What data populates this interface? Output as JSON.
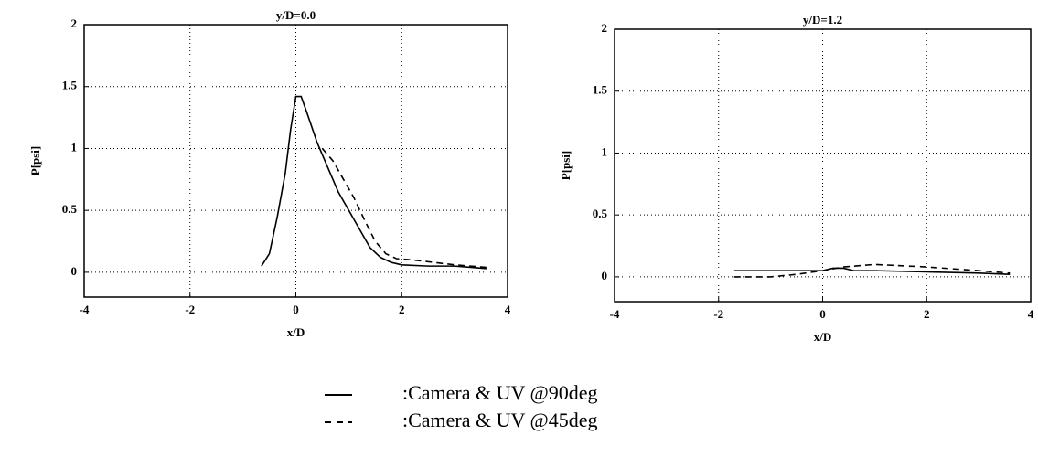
{
  "chart_data": [
    {
      "type": "line",
      "title": "y/D=0.0",
      "xlabel": "x/D",
      "ylabel": "P[psi]",
      "xlim": [
        -4,
        4
      ],
      "xticks": [
        -4,
        -2,
        0,
        2,
        4
      ],
      "ylim": [
        -0.2,
        2
      ],
      "yticks": [
        0,
        0.5,
        1,
        1.5,
        2
      ],
      "grid": true,
      "series": [
        {
          "name": ":Camera & UV @90deg",
          "color": "#000000",
          "dash": "solid",
          "x": [
            -0.65,
            -0.5,
            -0.35,
            -0.2,
            -0.1,
            0,
            0.1,
            0.2,
            0.4,
            0.6,
            0.8,
            1.0,
            1.2,
            1.4,
            1.6,
            1.8,
            2,
            2.5,
            3,
            3.6
          ],
          "values": [
            0.05,
            0.15,
            0.45,
            0.8,
            1.15,
            1.42,
            1.42,
            1.3,
            1.05,
            0.85,
            0.65,
            0.5,
            0.35,
            0.2,
            0.12,
            0.08,
            0.06,
            0.05,
            0.05,
            0.03
          ]
        },
        {
          "name": ":Camera & UV @45deg",
          "color": "#000000",
          "dash": "dashed",
          "x": [
            0.5,
            0.7,
            0.9,
            1.1,
            1.3,
            1.5,
            1.7,
            1.9,
            2.2,
            2.6,
            3,
            3.6
          ],
          "values": [
            1.0,
            0.9,
            0.75,
            0.6,
            0.42,
            0.25,
            0.15,
            0.11,
            0.1,
            0.08,
            0.06,
            0.04
          ]
        }
      ]
    },
    {
      "type": "line",
      "title": "y/D=1.2",
      "xlabel": "x/D",
      "ylabel": "P[psi]",
      "xlim": [
        -4,
        4
      ],
      "xticks": [
        -4,
        -2,
        0,
        2,
        4
      ],
      "ylim": [
        -0.2,
        2
      ],
      "yticks": [
        0,
        0.5,
        1,
        1.5,
        2
      ],
      "grid": true,
      "series": [
        {
          "color": "#000000",
          "dash": "solid",
          "x": [
            -1.7,
            -1,
            -0.5,
            0,
            0.2,
            0.4,
            0.6,
            1,
            2,
            3,
            3.6
          ],
          "values": [
            0.05,
            0.05,
            0.05,
            0.05,
            0.07,
            0.07,
            0.05,
            0.05,
            0.04,
            0.03,
            0.02
          ]
        },
        {
          "color": "#000000",
          "dash": "dashed",
          "x": [
            -1.7,
            -1,
            -0.5,
            0,
            0.4,
            1,
            2,
            3,
            3.6
          ],
          "values": [
            0,
            0,
            0.02,
            0.05,
            0.08,
            0.1,
            0.08,
            0.05,
            0.03
          ]
        }
      ]
    }
  ]
}
